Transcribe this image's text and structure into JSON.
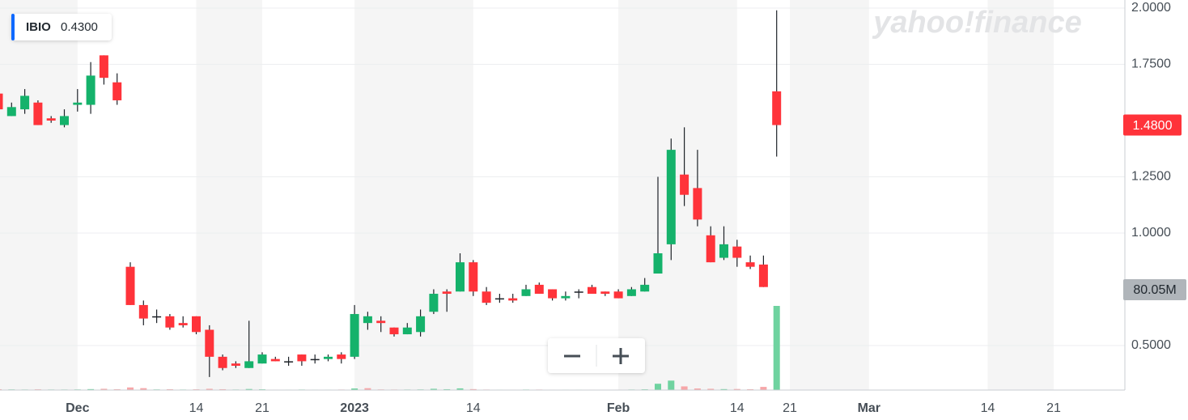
{
  "chart_data": {
    "type": "candlestick",
    "symbol": "IBIO",
    "symbol_value": "0.4300",
    "watermark": "yahoo!finance",
    "categories": [
      null,
      null,
      null,
      null,
      null,
      null,
      "Dec",
      null,
      null,
      null,
      null,
      null,
      null,
      null,
      null,
      "14",
      null,
      null,
      null,
      null,
      "21",
      null,
      null,
      null,
      null,
      null,
      null,
      "2023",
      null,
      null,
      null,
      null,
      null,
      null,
      null,
      null,
      "14",
      null,
      null,
      null,
      null,
      null,
      null,
      null,
      null,
      null,
      null,
      "Feb",
      null,
      null,
      null,
      null,
      null,
      null,
      null,
      null,
      "14",
      null,
      null,
      null,
      "21",
      null,
      null,
      null,
      null,
      null,
      "Mar",
      null,
      null,
      null,
      null,
      null,
      null,
      null,
      null,
      "14",
      null,
      null,
      null,
      null,
      "21",
      null,
      null,
      null,
      null,
      null
    ],
    "open": [
      1.62,
      1.52,
      1.55,
      1.58,
      1.51,
      1.48,
      1.57,
      1.57,
      1.79,
      1.67,
      0.85,
      0.68,
      0.63,
      0.63,
      0.6,
      0.63,
      0.57,
      0.45,
      0.42,
      0.4,
      0.42,
      0.44,
      0.43,
      0.46,
      0.44,
      0.44,
      0.46,
      0.45,
      0.6,
      0.61,
      0.58,
      0.55,
      0.56,
      0.65,
      0.74,
      0.74,
      0.87,
      0.74,
      0.71,
      0.71,
      0.72,
      0.77,
      0.75,
      0.71,
      0.74,
      0.76,
      0.74,
      0.74,
      0.72,
      0.74,
      0.82,
      0.95,
      1.26,
      1.2,
      0.99,
      0.89,
      0.94,
      0.87,
      0.86,
      1.63,
      null,
      null,
      null,
      null,
      null,
      null,
      null,
      null,
      null,
      null,
      null,
      null,
      null,
      null,
      null,
      null,
      null,
      null,
      null,
      null,
      null,
      null,
      null,
      null,
      null,
      null
    ],
    "high": [
      1.63,
      1.58,
      1.64,
      1.59,
      1.52,
      1.55,
      1.64,
      1.76,
      1.79,
      1.71,
      0.87,
      0.7,
      0.66,
      0.64,
      0.63,
      0.63,
      0.59,
      0.46,
      0.43,
      0.61,
      0.47,
      0.45,
      0.45,
      0.46,
      0.46,
      0.46,
      0.47,
      0.68,
      0.65,
      0.63,
      0.58,
      0.6,
      0.66,
      0.75,
      0.75,
      0.91,
      0.88,
      0.76,
      0.73,
      0.73,
      0.77,
      0.78,
      0.75,
      0.74,
      0.75,
      0.77,
      0.74,
      0.75,
      0.76,
      0.8,
      1.25,
      1.42,
      1.47,
      1.37,
      1.03,
      1.03,
      0.97,
      0.9,
      0.9,
      1.99,
      null,
      null,
      null,
      null,
      null,
      null,
      null,
      null,
      null,
      null,
      null,
      null,
      null,
      null,
      null,
      null,
      null,
      null,
      null,
      null,
      null,
      null,
      null,
      null,
      null,
      null
    ],
    "low": [
      1.55,
      1.52,
      1.53,
      1.48,
      1.49,
      1.47,
      1.54,
      1.53,
      1.66,
      1.57,
      0.68,
      0.59,
      0.6,
      0.57,
      0.58,
      0.55,
      0.36,
      0.39,
      0.4,
      0.4,
      0.42,
      0.43,
      0.41,
      0.41,
      0.42,
      0.43,
      0.42,
      0.44,
      0.57,
      0.56,
      0.54,
      0.55,
      0.54,
      0.64,
      0.65,
      0.74,
      0.72,
      0.68,
      0.69,
      0.69,
      0.72,
      0.73,
      0.7,
      0.7,
      0.71,
      0.73,
      0.72,
      0.71,
      0.72,
      0.74,
      0.82,
      0.88,
      1.12,
      1.03,
      0.87,
      0.88,
      0.85,
      0.84,
      0.76,
      1.34,
      null,
      null,
      null,
      null,
      null,
      null,
      null,
      null,
      null,
      null,
      null,
      null,
      null,
      null,
      null,
      null,
      null,
      null,
      null,
      null,
      null,
      null,
      null,
      null,
      null,
      null
    ],
    "close": [
      1.55,
      1.56,
      1.61,
      1.48,
      1.5,
      1.52,
      1.58,
      1.7,
      1.69,
      1.59,
      0.68,
      0.62,
      0.63,
      0.58,
      0.59,
      0.56,
      0.45,
      0.4,
      0.41,
      0.43,
      0.46,
      0.43,
      0.43,
      0.43,
      0.44,
      0.45,
      0.44,
      0.64,
      0.63,
      0.6,
      0.55,
      0.58,
      0.63,
      0.73,
      0.73,
      0.87,
      0.74,
      0.69,
      0.71,
      0.7,
      0.75,
      0.73,
      0.71,
      0.72,
      0.74,
      0.73,
      0.73,
      0.71,
      0.75,
      0.77,
      0.91,
      1.37,
      1.17,
      1.06,
      0.87,
      0.95,
      0.89,
      0.85,
      0.76,
      1.48,
      null,
      null,
      null,
      null,
      null,
      null,
      null,
      null,
      null,
      null,
      null,
      null,
      null,
      null,
      null,
      null,
      null,
      null,
      null,
      null,
      null,
      null,
      null,
      null,
      null,
      null
    ],
    "last_close_label": "1.4800",
    "volume": [
      0.8,
      0.6,
      0.5,
      0.7,
      0.5,
      0.5,
      0.6,
      0.9,
      1.2,
      0.8,
      2.5,
      1.8,
      0.6,
      0.8,
      0.5,
      0.7,
      1.2,
      0.8,
      0.5,
      1.0,
      0.7,
      0.4,
      0.4,
      0.5,
      0.4,
      0.4,
      0.5,
      1.5,
      1.8,
      0.6,
      0.5,
      0.5,
      0.6,
      1.2,
      0.8,
      1.6,
      0.9,
      0.5,
      0.4,
      0.4,
      0.5,
      0.5,
      0.4,
      0.4,
      0.4,
      0.4,
      0.3,
      0.4,
      0.5,
      0.7,
      6.0,
      9.0,
      3.5,
      1.5,
      1.2,
      0.9,
      1.0,
      0.8,
      3.0,
      80.05,
      null,
      null,
      null,
      null,
      null,
      null,
      null,
      null,
      null,
      null,
      null,
      null,
      null,
      null,
      null,
      null,
      null,
      null,
      null,
      null,
      null,
      null,
      null,
      null,
      null,
      null
    ],
    "volume_label": "80.05M",
    "ylim": [
      0.302,
      2.036
    ],
    "yticks": [
      {
        "value": 0.5,
        "label": "0.5000"
      },
      {
        "value": 1,
        "label": "1.0000"
      },
      {
        "value": 1.25,
        "label": "1.2500"
      },
      {
        "value": 1.75,
        "label": "1.7500"
      },
      {
        "value": 2,
        "label": "2.0000"
      }
    ],
    "grid": true,
    "up_color": "#15b26b",
    "down_color": "#ff333a",
    "flat_color": "#1d2228",
    "volume_up_color": "#6fd3a0",
    "volume_down_color": "#f7a6a8"
  }
}
